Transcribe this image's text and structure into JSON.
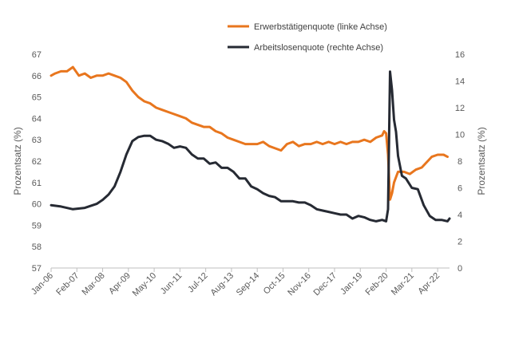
{
  "chart_data": {
    "type": "line",
    "legend_position": "top-right",
    "grid": false,
    "x_tick_labels": [
      "Jan-06",
      "Feb-07",
      "Mar-08",
      "Apr-09",
      "May-10",
      "Jun-11",
      "Jul-12",
      "Aug-13",
      "Sep-14",
      "Oct-15",
      "Nov-16",
      "Dec-17",
      "Jan-19",
      "Feb-20",
      "Mar-21",
      "Apr-22"
    ],
    "y_left": {
      "label": "Prozentsatz (%)",
      "ylim": [
        57,
        67
      ],
      "ticks": [
        57,
        58,
        59,
        60,
        61,
        62,
        63,
        64,
        65,
        66,
        67
      ]
    },
    "y_right": {
      "label": "Prozentsatz (%)",
      "ylim": [
        0,
        16
      ],
      "ticks": [
        0,
        2,
        4,
        6,
        8,
        10,
        12,
        14,
        16
      ]
    },
    "series": [
      {
        "name": "Erwerbstätigenquote (linke Achse)",
        "axis": "left",
        "color": "#E8761E",
        "points": [
          [
            "2006-01",
            66.0
          ],
          [
            "2006-03",
            66.1
          ],
          [
            "2006-06",
            66.2
          ],
          [
            "2006-09",
            66.2
          ],
          [
            "2006-12",
            66.4
          ],
          [
            "2007-03",
            66.0
          ],
          [
            "2007-06",
            66.1
          ],
          [
            "2007-09",
            65.9
          ],
          [
            "2007-12",
            66.0
          ],
          [
            "2008-03",
            66.0
          ],
          [
            "2008-06",
            66.1
          ],
          [
            "2008-09",
            66.0
          ],
          [
            "2008-12",
            65.9
          ],
          [
            "2009-03",
            65.7
          ],
          [
            "2009-06",
            65.3
          ],
          [
            "2009-09",
            65.0
          ],
          [
            "2009-12",
            64.8
          ],
          [
            "2010-03",
            64.7
          ],
          [
            "2010-06",
            64.5
          ],
          [
            "2010-09",
            64.4
          ],
          [
            "2010-12",
            64.3
          ],
          [
            "2011-03",
            64.2
          ],
          [
            "2011-06",
            64.1
          ],
          [
            "2011-09",
            64.0
          ],
          [
            "2011-12",
            63.8
          ],
          [
            "2012-03",
            63.7
          ],
          [
            "2012-06",
            63.6
          ],
          [
            "2012-09",
            63.6
          ],
          [
            "2012-12",
            63.4
          ],
          [
            "2013-03",
            63.3
          ],
          [
            "2013-06",
            63.1
          ],
          [
            "2013-09",
            63.0
          ],
          [
            "2013-12",
            62.9
          ],
          [
            "2014-03",
            62.8
          ],
          [
            "2014-06",
            62.8
          ],
          [
            "2014-09",
            62.8
          ],
          [
            "2014-12",
            62.9
          ],
          [
            "2015-03",
            62.7
          ],
          [
            "2015-06",
            62.6
          ],
          [
            "2015-09",
            62.5
          ],
          [
            "2015-12",
            62.8
          ],
          [
            "2016-03",
            62.9
          ],
          [
            "2016-06",
            62.7
          ],
          [
            "2016-09",
            62.8
          ],
          [
            "2016-12",
            62.8
          ],
          [
            "2017-03",
            62.9
          ],
          [
            "2017-06",
            62.8
          ],
          [
            "2017-09",
            62.9
          ],
          [
            "2017-12",
            62.8
          ],
          [
            "2018-03",
            62.9
          ],
          [
            "2018-06",
            62.8
          ],
          [
            "2018-09",
            62.9
          ],
          [
            "2018-12",
            62.9
          ],
          [
            "2019-03",
            63.0
          ],
          [
            "2019-06",
            62.9
          ],
          [
            "2019-09",
            63.1
          ],
          [
            "2019-12",
            63.2
          ],
          [
            "2020-01",
            63.4
          ],
          [
            "2020-02",
            63.3
          ],
          [
            "2020-03",
            62.3
          ],
          [
            "2020-04",
            60.2
          ],
          [
            "2020-05",
            60.5
          ],
          [
            "2020-06",
            61.0
          ],
          [
            "2020-08",
            61.5
          ],
          [
            "2020-11",
            61.5
          ],
          [
            "2021-02",
            61.4
          ],
          [
            "2021-05",
            61.6
          ],
          [
            "2021-08",
            61.7
          ],
          [
            "2021-11",
            62.0
          ],
          [
            "2022-01",
            62.2
          ],
          [
            "2022-04",
            62.3
          ],
          [
            "2022-07",
            62.3
          ],
          [
            "2022-09",
            62.2
          ]
        ]
      },
      {
        "name": "Arbeitslosenquote (rechte Achse)",
        "axis": "right",
        "color": "#262A33",
        "points": [
          [
            "2006-01",
            4.7
          ],
          [
            "2006-06",
            4.6
          ],
          [
            "2006-12",
            4.4
          ],
          [
            "2007-06",
            4.5
          ],
          [
            "2007-12",
            4.8
          ],
          [
            "2008-03",
            5.1
          ],
          [
            "2008-06",
            5.5
          ],
          [
            "2008-09",
            6.1
          ],
          [
            "2008-12",
            7.2
          ],
          [
            "2009-03",
            8.5
          ],
          [
            "2009-06",
            9.5
          ],
          [
            "2009-09",
            9.8
          ],
          [
            "2009-12",
            9.9
          ],
          [
            "2010-03",
            9.9
          ],
          [
            "2010-06",
            9.6
          ],
          [
            "2010-09",
            9.5
          ],
          [
            "2010-12",
            9.3
          ],
          [
            "2011-03",
            9.0
          ],
          [
            "2011-06",
            9.1
          ],
          [
            "2011-09",
            9.0
          ],
          [
            "2011-12",
            8.5
          ],
          [
            "2012-03",
            8.2
          ],
          [
            "2012-06",
            8.2
          ],
          [
            "2012-09",
            7.8
          ],
          [
            "2012-12",
            7.9
          ],
          [
            "2013-03",
            7.5
          ],
          [
            "2013-06",
            7.5
          ],
          [
            "2013-09",
            7.2
          ],
          [
            "2013-12",
            6.7
          ],
          [
            "2014-03",
            6.7
          ],
          [
            "2014-06",
            6.1
          ],
          [
            "2014-09",
            5.9
          ],
          [
            "2014-12",
            5.6
          ],
          [
            "2015-03",
            5.4
          ],
          [
            "2015-06",
            5.3
          ],
          [
            "2015-09",
            5.0
          ],
          [
            "2015-12",
            5.0
          ],
          [
            "2016-03",
            5.0
          ],
          [
            "2016-06",
            4.9
          ],
          [
            "2016-09",
            4.9
          ],
          [
            "2016-12",
            4.7
          ],
          [
            "2017-03",
            4.4
          ],
          [
            "2017-06",
            4.3
          ],
          [
            "2017-09",
            4.2
          ],
          [
            "2017-12",
            4.1
          ],
          [
            "2018-03",
            4.0
          ],
          [
            "2018-06",
            4.0
          ],
          [
            "2018-09",
            3.7
          ],
          [
            "2018-12",
            3.9
          ],
          [
            "2019-03",
            3.8
          ],
          [
            "2019-06",
            3.6
          ],
          [
            "2019-09",
            3.5
          ],
          [
            "2019-12",
            3.6
          ],
          [
            "2020-02",
            3.5
          ],
          [
            "2020-03",
            4.4
          ],
          [
            "2020-04",
            14.7
          ],
          [
            "2020-05",
            13.3
          ],
          [
            "2020-06",
            11.1
          ],
          [
            "2020-07",
            10.2
          ],
          [
            "2020-08",
            8.4
          ],
          [
            "2020-10",
            6.9
          ],
          [
            "2020-12",
            6.7
          ],
          [
            "2021-03",
            6.0
          ],
          [
            "2021-06",
            5.9
          ],
          [
            "2021-09",
            4.7
          ],
          [
            "2021-12",
            3.9
          ],
          [
            "2022-03",
            3.6
          ],
          [
            "2022-06",
            3.6
          ],
          [
            "2022-09",
            3.5
          ],
          [
            "2022-10",
            3.7
          ]
        ]
      }
    ]
  }
}
